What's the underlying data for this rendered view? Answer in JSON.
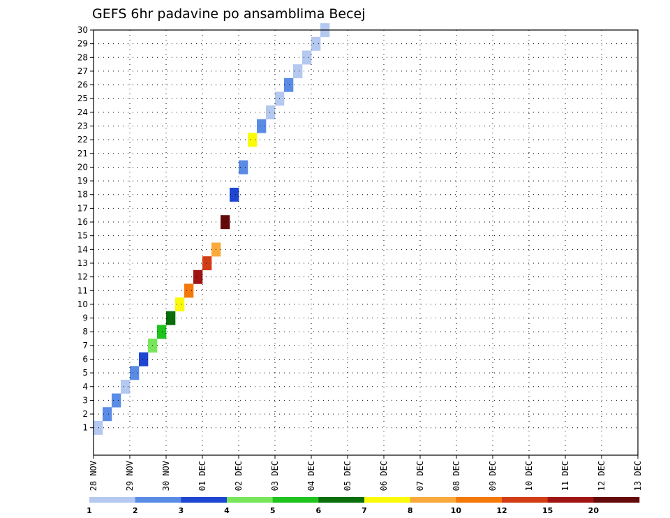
{
  "chart_data": {
    "type": "heatmap",
    "title": "GEFS 6hr padavine po ansamblima Becej",
    "xlabel": "",
    "ylabel": "",
    "x_ticks": [
      "28 NOV",
      "29 NOV",
      "30 NOV",
      "01 DEC",
      "02 DEC",
      "03 DEC",
      "04 DEC",
      "05 DEC",
      "06 DEC",
      "07 DEC",
      "08 DEC",
      "09 DEC",
      "10 DEC",
      "11 DEC",
      "12 DEC",
      "13 DEC"
    ],
    "y_ticks": [
      "1",
      "2",
      "3",
      "4",
      "5",
      "6",
      "7",
      "8",
      "9",
      "10",
      "11",
      "12",
      "13",
      "14",
      "15",
      "16",
      "17",
      "18",
      "19",
      "20",
      "21",
      "22",
      "23",
      "24",
      "25",
      "26",
      "27",
      "28",
      "29",
      "30"
    ],
    "x_range": [
      "2024-11-28 00Z",
      "2024-12-13 00Z"
    ],
    "y_range": [
      0,
      30
    ],
    "steps_per_day": 4,
    "grid": true,
    "legend_placement": "bottom",
    "legend": {
      "levels": [
        "1",
        "2",
        "3",
        "4",
        "5",
        "6",
        "7",
        "8",
        "10",
        "12",
        "15",
        "20"
      ],
      "colors": [
        "#b4c8f0",
        "#5a8ce6",
        "#1e46d2",
        "#78e65a",
        "#1ec31e",
        "#0a6e0a",
        "#fafa0a",
        "#faaa3c",
        "#f5780a",
        "#d23c14",
        "#a01414",
        "#640a0a"
      ]
    },
    "cells": [
      [
        0,
        1,
        0
      ],
      [
        1,
        2,
        1
      ],
      [
        2,
        3,
        1
      ],
      [
        3,
        4,
        0
      ],
      [
        4,
        5,
        1
      ],
      [
        5,
        6,
        2
      ],
      [
        6,
        7,
        3
      ],
      [
        7,
        8,
        4
      ],
      [
        8,
        9,
        5
      ],
      [
        9,
        10,
        6
      ],
      [
        10,
        11,
        8
      ],
      [
        11,
        12,
        10
      ],
      [
        12,
        13,
        9
      ],
      [
        13,
        14,
        7
      ],
      [
        14,
        16,
        11
      ],
      [
        15,
        18,
        2
      ],
      [
        16,
        20,
        1
      ],
      [
        17,
        22,
        6
      ],
      [
        18,
        23,
        1
      ],
      [
        19,
        24,
        0
      ],
      [
        20,
        25,
        0
      ],
      [
        21,
        26,
        1
      ],
      [
        22,
        27,
        0
      ],
      [
        23,
        28,
        0
      ],
      [
        24,
        29,
        0
      ],
      [
        25,
        30,
        0
      ]
    ]
  }
}
